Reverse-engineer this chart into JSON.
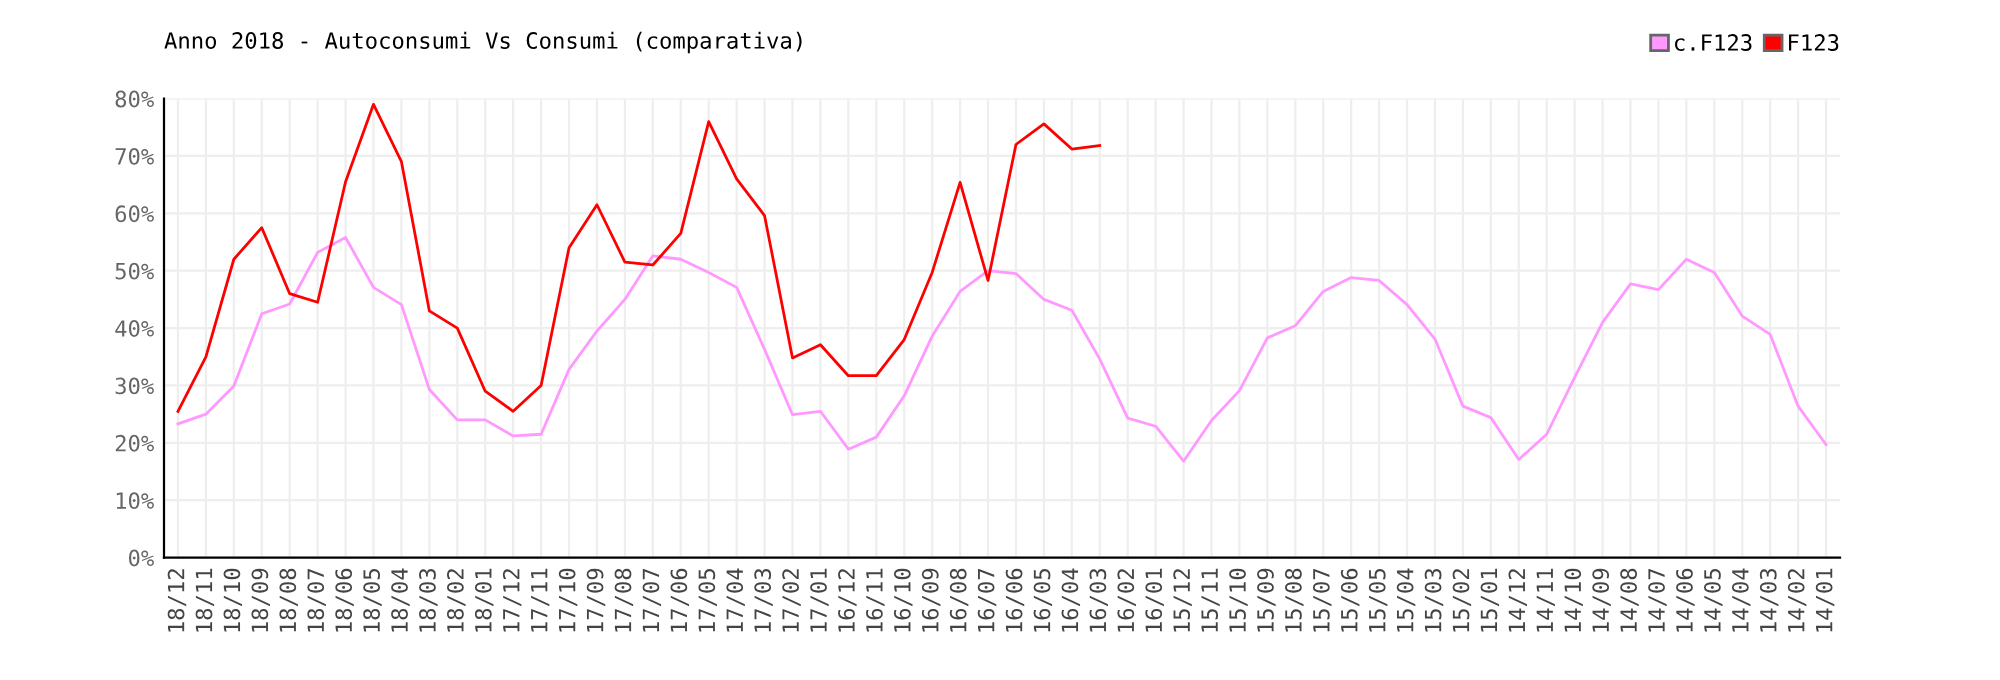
{
  "chart_data": {
    "type": "line",
    "title": "Anno 2018 - Autoconsumi Vs Consumi (comparativa)",
    "categories": [
      "18/12",
      "18/11",
      "18/10",
      "18/09",
      "18/08",
      "18/07",
      "18/06",
      "18/05",
      "18/04",
      "18/03",
      "18/02",
      "18/01",
      "17/12",
      "17/11",
      "17/10",
      "17/09",
      "17/08",
      "17/07",
      "17/06",
      "17/05",
      "17/04",
      "17/03",
      "17/02",
      "17/01",
      "16/12",
      "16/11",
      "16/10",
      "16/09",
      "16/08",
      "16/07",
      "16/06",
      "16/05",
      "16/04",
      "16/03",
      "16/02",
      "16/01",
      "15/12",
      "15/11",
      "15/10",
      "15/09",
      "15/08",
      "15/07",
      "15/06",
      "15/05",
      "15/04",
      "15/03",
      "15/02",
      "15/01",
      "14/12",
      "14/11",
      "14/10",
      "14/09",
      "14/08",
      "14/07",
      "14/06",
      "14/05",
      "14/04",
      "14/03",
      "14/02",
      "14/01"
    ],
    "series": [
      {
        "name": "c.F123",
        "color": "#ff99ff",
        "values": [
          23.3,
          25,
          29.9,
          42.5,
          44.2,
          53.2,
          55.8,
          47.1,
          44.1,
          29.3,
          24,
          24,
          21.2,
          21.5,
          32.8,
          39.5,
          45,
          52.6,
          52,
          49.7,
          47.1,
          36.3,
          24.9,
          25.5,
          18.9,
          21,
          28.2,
          38.6,
          46.4,
          50,
          49.5,
          45,
          43.1,
          34.6,
          24.3,
          22.9,
          16.8,
          23.9,
          29.1,
          38.3,
          40.4,
          46.4,
          48.8,
          48.3,
          44.1,
          38.1,
          26.4,
          24.4,
          17.1,
          21.5,
          31.4,
          41,
          47.7,
          46.7,
          52,
          49.7,
          42.1,
          38.9,
          26.4,
          19.7
        ]
      },
      {
        "name": "F123",
        "color": "#ff0000",
        "values": [
          25.5,
          35,
          52,
          57.5,
          46,
          44.5,
          65.5,
          79,
          69,
          43,
          40,
          29,
          25.5,
          30,
          54,
          61.5,
          51.5,
          51,
          56.5,
          76,
          66,
          59.6,
          34.8,
          37.1,
          31.7,
          31.7,
          38,
          49.7,
          65.4,
          48.3,
          72,
          75.6,
          71.2,
          71.8,
          null,
          null,
          null,
          null,
          null,
          null,
          null,
          null,
          null,
          null,
          null,
          null,
          null,
          null,
          null,
          null,
          null,
          null,
          null,
          null,
          null,
          null,
          null,
          null,
          null,
          null
        ]
      }
    ],
    "ylim": [
      0,
      80
    ],
    "yticks": [
      {
        "value": 0,
        "label": "0%"
      },
      {
        "value": 10,
        "label": "10%"
      },
      {
        "value": 20,
        "label": "20%"
      },
      {
        "value": 30,
        "label": "30%"
      },
      {
        "value": 40,
        "label": "40%"
      },
      {
        "value": 50,
        "label": "50%"
      },
      {
        "value": 60,
        "label": "60%"
      },
      {
        "value": 70,
        "label": "70%"
      },
      {
        "value": 80,
        "label": "80%"
      }
    ],
    "grid": true,
    "legend": "top right",
    "marker": "none",
    "line_style": "solid"
  }
}
